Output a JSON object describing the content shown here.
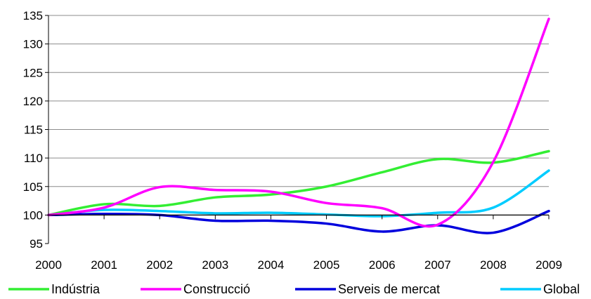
{
  "chart_data": {
    "type": "line",
    "title": "",
    "xlabel": "",
    "ylabel": "",
    "x": [
      "2000",
      "2001",
      "2002",
      "2003",
      "2004",
      "2005",
      "2006",
      "2007",
      "2008",
      "2009"
    ],
    "ylim": [
      95,
      135
    ],
    "yticks": [
      95,
      100,
      105,
      110,
      115,
      120,
      125,
      130,
      135
    ],
    "grid": true,
    "legend_position": "bottom",
    "series": [
      {
        "name": "Indústria",
        "color": "#33ee33",
        "values": [
          100,
          101.9,
          101.6,
          103.1,
          103.6,
          105.0,
          107.5,
          109.8,
          109.2,
          111.2
        ]
      },
      {
        "name": "Construcció",
        "color": "#ff00ff",
        "values": [
          100,
          101.3,
          104.9,
          104.4,
          104.1,
          102.1,
          101.2,
          98.3,
          109.3,
          134.4
        ]
      },
      {
        "name": "Serveis de mercat",
        "color": "#0000dd",
        "values": [
          100,
          100.2,
          100.0,
          99.0,
          99.0,
          98.5,
          97.1,
          98.2,
          96.9,
          100.7
        ]
      },
      {
        "name": "Global",
        "color": "#00ccff",
        "values": [
          100,
          100.9,
          100.7,
          100.3,
          100.4,
          100.1,
          99.8,
          100.4,
          101.3,
          107.8
        ]
      }
    ]
  }
}
